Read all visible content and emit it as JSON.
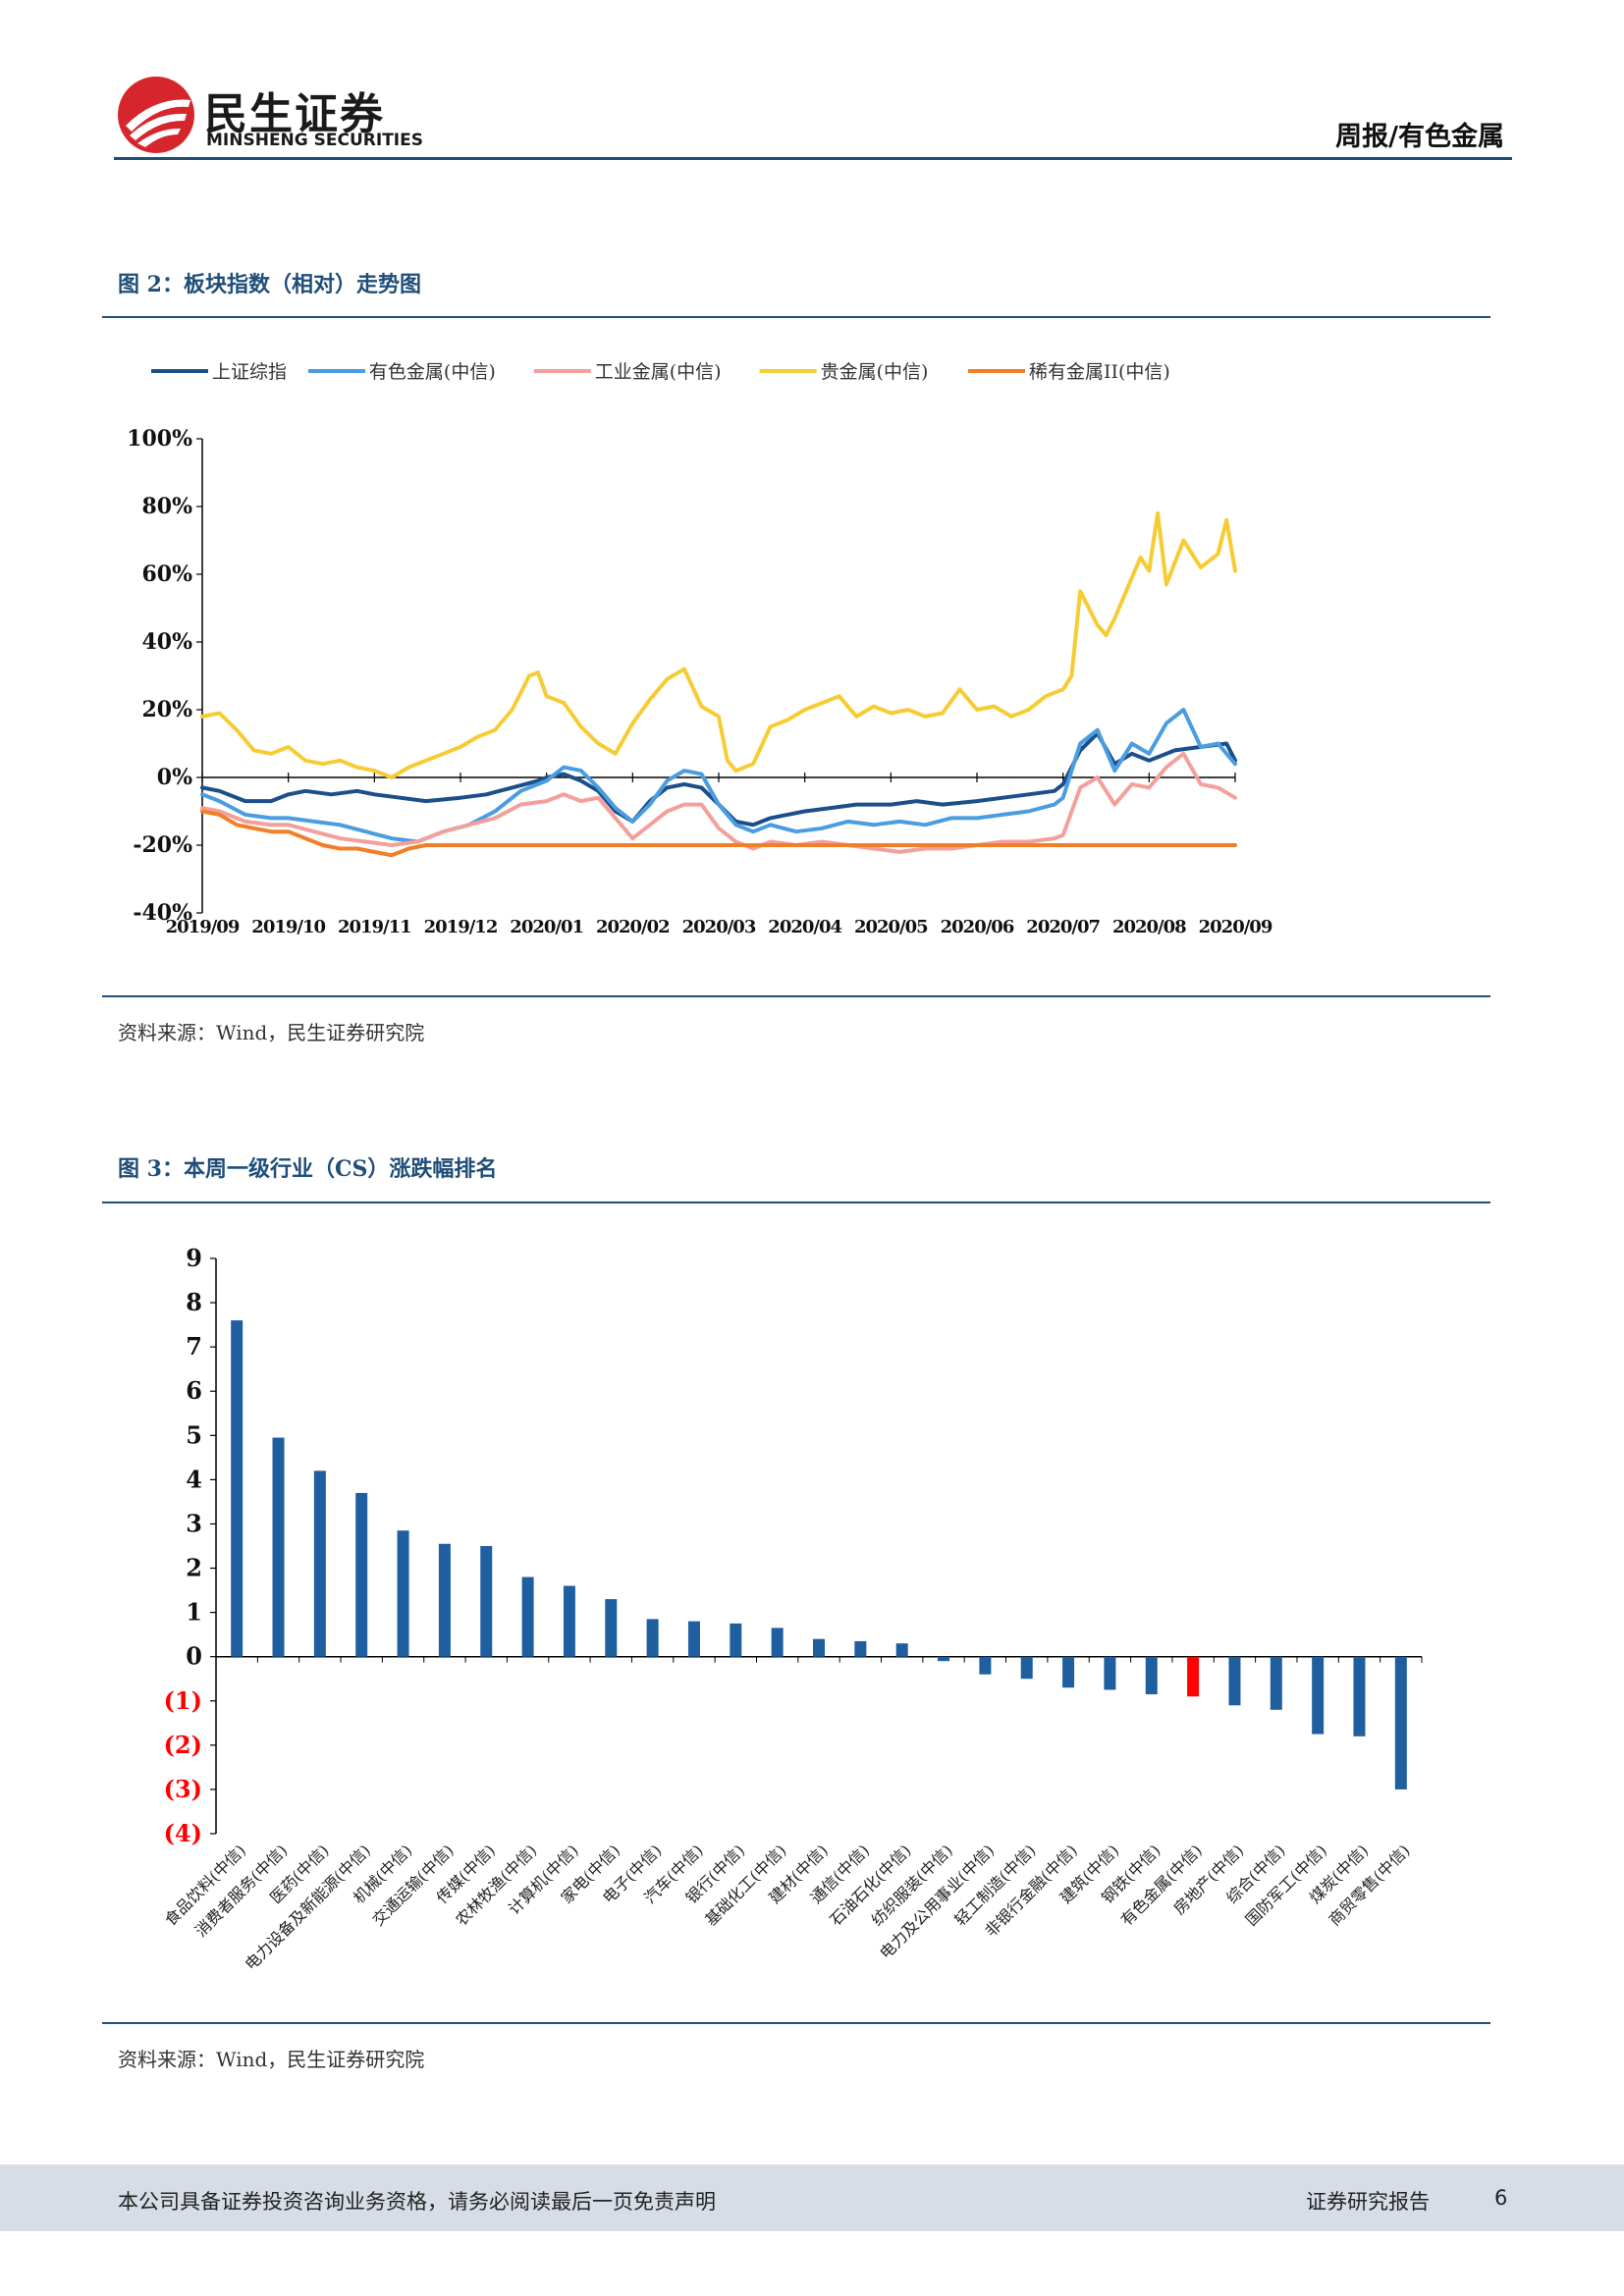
{
  "header": {
    "logo_cn": "民生证券",
    "logo_en": "MINSHENG SECURITIES",
    "report_type": "周报/有色金属"
  },
  "colors": {
    "brand_red": "#d7252d",
    "rule_blue": "#1f4e79",
    "bar_blue": "#1f5fa0",
    "highlight_red": "#ff0000"
  },
  "figure2": {
    "title": "图 2：板块指数（相对）走势图",
    "source": "资料来源：Wind，民生证券研究院"
  },
  "figure3": {
    "title": "图 3：本周一级行业（CS）涨跌幅排名",
    "source": "资料来源：Wind，民生证券研究院"
  },
  "footer": {
    "disclaimer": "本公司具备证券投资咨询业务资格，请务必阅读最后一页免责声明",
    "report_label": "证券研究报告",
    "page_number": "6"
  },
  "chart_data": [
    {
      "type": "line",
      "title": "",
      "xlabel": "",
      "ylabel": "",
      "x_tick_labels": [
        "2019/09",
        "2019/10",
        "2019/11",
        "2019/12",
        "2020/01",
        "2020/02",
        "2020/03",
        "2020/04",
        "2020/05",
        "2020/06",
        "2020/07",
        "2020/08",
        "2020/09"
      ],
      "y_tick_labels": [
        "100%",
        "80%",
        "60%",
        "40%",
        "20%",
        "0%",
        "-20%",
        "-40%"
      ],
      "ylim": [
        -40,
        100
      ],
      "legend_position": "top",
      "grid": false,
      "series": [
        {
          "name": "上证综指",
          "color": "#1b4f8a",
          "x": [
            0,
            0.2,
            0.5,
            0.8,
            1.0,
            1.2,
            1.5,
            1.8,
            2.0,
            2.3,
            2.6,
            3.0,
            3.3,
            3.6,
            3.9,
            4.0,
            4.2,
            4.4,
            4.6,
            4.8,
            5.0,
            5.2,
            5.4,
            5.6,
            5.8,
            6.0,
            6.2,
            6.4,
            6.6,
            6.8,
            7.0,
            7.3,
            7.6,
            8.0,
            8.3,
            8.6,
            9.0,
            9.3,
            9.6,
            9.9,
            10.0,
            10.2,
            10.4,
            10.6,
            10.8,
            11.0,
            11.3,
            11.6,
            11.9,
            12.0
          ],
          "y": [
            -3,
            -4,
            -7,
            -7,
            -5,
            -4,
            -5,
            -4,
            -5,
            -6,
            -7,
            -6,
            -5,
            -3,
            -1,
            0,
            1,
            -1,
            -4,
            -10,
            -13,
            -7,
            -3,
            -2,
            -3,
            -8,
            -13,
            -14,
            -12,
            -11,
            -10,
            -9,
            -8,
            -8,
            -7,
            -8,
            -7,
            -6,
            -5,
            -4,
            -2,
            8,
            13,
            4,
            7,
            5,
            8,
            9,
            10,
            5
          ]
        },
        {
          "name": "有色金属(中信)",
          "color": "#4a9de0",
          "x": [
            0,
            0.2,
            0.5,
            0.8,
            1.0,
            1.3,
            1.6,
            1.9,
            2.2,
            2.5,
            2.8,
            3.1,
            3.4,
            3.7,
            4.0,
            4.2,
            4.4,
            4.6,
            4.8,
            5.0,
            5.2,
            5.4,
            5.6,
            5.8,
            6.0,
            6.2,
            6.4,
            6.6,
            6.9,
            7.2,
            7.5,
            7.8,
            8.1,
            8.4,
            8.7,
            9.0,
            9.3,
            9.6,
            9.9,
            10.0,
            10.2,
            10.4,
            10.6,
            10.8,
            11.0,
            11.2,
            11.4,
            11.6,
            11.8,
            12.0
          ],
          "y": [
            -5,
            -7,
            -11,
            -12,
            -12,
            -13,
            -14,
            -16,
            -18,
            -19,
            -16,
            -14,
            -10,
            -4,
            -1,
            3,
            2,
            -3,
            -9,
            -13,
            -8,
            -1,
            2,
            1,
            -8,
            -14,
            -16,
            -14,
            -16,
            -15,
            -13,
            -14,
            -13,
            -14,
            -12,
            -12,
            -11,
            -10,
            -8,
            -6,
            10,
            14,
            2,
            10,
            7,
            16,
            20,
            9,
            10,
            4
          ]
        },
        {
          "name": "工业金属(中信)",
          "color": "#f4a09a",
          "x": [
            0,
            0.2,
            0.5,
            0.8,
            1.0,
            1.3,
            1.6,
            1.9,
            2.2,
            2.5,
            2.8,
            3.1,
            3.4,
            3.7,
            4.0,
            4.2,
            4.4,
            4.6,
            4.8,
            5.0,
            5.2,
            5.4,
            5.6,
            5.8,
            6.0,
            6.2,
            6.4,
            6.6,
            6.9,
            7.2,
            7.5,
            7.8,
            8.1,
            8.4,
            8.7,
            9.0,
            9.3,
            9.6,
            9.9,
            10.0,
            10.2,
            10.4,
            10.6,
            10.8,
            11.0,
            11.2,
            11.4,
            11.6,
            11.8,
            12.0
          ],
          "y": [
            -9,
            -10,
            -13,
            -14,
            -14,
            -16,
            -18,
            -19,
            -20,
            -19,
            -16,
            -14,
            -12,
            -8,
            -7,
            -5,
            -7,
            -6,
            -12,
            -18,
            -14,
            -10,
            -8,
            -8,
            -15,
            -19,
            -21,
            -19,
            -20,
            -19,
            -20,
            -21,
            -22,
            -21,
            -21,
            -20,
            -19,
            -19,
            -18,
            -17,
            -3,
            0,
            -8,
            -2,
            -3,
            3,
            7,
            -2,
            -3,
            -6
          ]
        },
        {
          "name": "贵金属(中信)",
          "color": "#f6cc35",
          "x": [
            0,
            0.2,
            0.4,
            0.6,
            0.8,
            1.0,
            1.2,
            1.4,
            1.6,
            1.8,
            2.0,
            2.2,
            2.4,
            2.6,
            2.8,
            3.0,
            3.2,
            3.4,
            3.6,
            3.8,
            3.9,
            4.0,
            4.2,
            4.4,
            4.6,
            4.8,
            5.0,
            5.2,
            5.4,
            5.6,
            5.8,
            6.0,
            6.1,
            6.2,
            6.4,
            6.6,
            6.8,
            7.0,
            7.2,
            7.4,
            7.6,
            7.8,
            8.0,
            8.2,
            8.4,
            8.6,
            8.8,
            9.0,
            9.2,
            9.4,
            9.6,
            9.8,
            10.0,
            10.1,
            10.2,
            10.4,
            10.5,
            10.6,
            10.8,
            10.9,
            11.0,
            11.1,
            11.2,
            11.4,
            11.6,
            11.8,
            11.9,
            12.0
          ],
          "y": [
            18,
            19,
            14,
            8,
            7,
            9,
            5,
            4,
            5,
            3,
            2,
            0,
            3,
            5,
            7,
            9,
            12,
            14,
            20,
            30,
            31,
            24,
            22,
            15,
            10,
            7,
            16,
            23,
            29,
            32,
            21,
            18,
            5,
            2,
            4,
            15,
            17,
            20,
            22,
            24,
            18,
            21,
            19,
            20,
            18,
            19,
            26,
            20,
            21,
            18,
            20,
            24,
            26,
            30,
            55,
            45,
            42,
            47,
            59,
            65,
            61,
            78,
            57,
            70,
            62,
            66,
            76,
            61
          ]
        },
        {
          "name": "稀有金属II(中信)",
          "color": "#f07f28",
          "x": [
            0,
            0.2,
            0.4,
            0.6,
            0.8,
            1.0,
            1.2,
            1.4,
            1.6,
            1.8,
            2.0,
            2.2,
            2.4,
            2.6,
            2.8,
            3.0,
            12.0
          ],
          "y": [
            -10,
            -11,
            -14,
            -15,
            -16,
            -16,
            -18,
            -20,
            -21,
            -21,
            -22,
            -23,
            -21,
            -20,
            -20,
            -20,
            -20
          ]
        }
      ]
    },
    {
      "type": "bar",
      "title": "",
      "xlabel": "",
      "ylabel": "",
      "ylim": [
        -4,
        9
      ],
      "y_tick_labels": [
        "9",
        "8",
        "7",
        "6",
        "5",
        "4",
        "3",
        "2",
        "1",
        "0",
        "(1)",
        "(2)",
        "(3)",
        "(4)"
      ],
      "highlight_category": "有色金属(中信)",
      "categories": [
        "食品饮料(中信)",
        "消费者服务(中信)",
        "医药(中信)",
        "电力设备及新能源(中信)",
        "机械(中信)",
        "交通运输(中信)",
        "传媒(中信)",
        "农林牧渔(中信)",
        "计算机(中信)",
        "家电(中信)",
        "电子(中信)",
        "汽车(中信)",
        "银行(中信)",
        "基础化工(中信)",
        "建材(中信)",
        "通信(中信)",
        "石油石化(中信)",
        "纺织服装(中信)",
        "电力及公用事业(中信)",
        "轻工制造(中信)",
        "非银行金融(中信)",
        "建筑(中信)",
        "钢铁(中信)",
        "有色金属(中信)",
        "房地产(中信)",
        "综合(中信)",
        "国防军工(中信)",
        "煤炭(中信)",
        "商贸零售(中信)"
      ],
      "values": [
        7.6,
        4.95,
        4.2,
        3.7,
        2.85,
        2.55,
        2.5,
        1.8,
        1.6,
        1.3,
        0.85,
        0.8,
        0.75,
        0.65,
        0.4,
        0.35,
        0.3,
        -0.1,
        -0.4,
        -0.5,
        -0.7,
        -0.75,
        -0.85,
        -0.9,
        -1.1,
        -1.2,
        -1.75,
        -1.8,
        -3.0
      ]
    }
  ]
}
